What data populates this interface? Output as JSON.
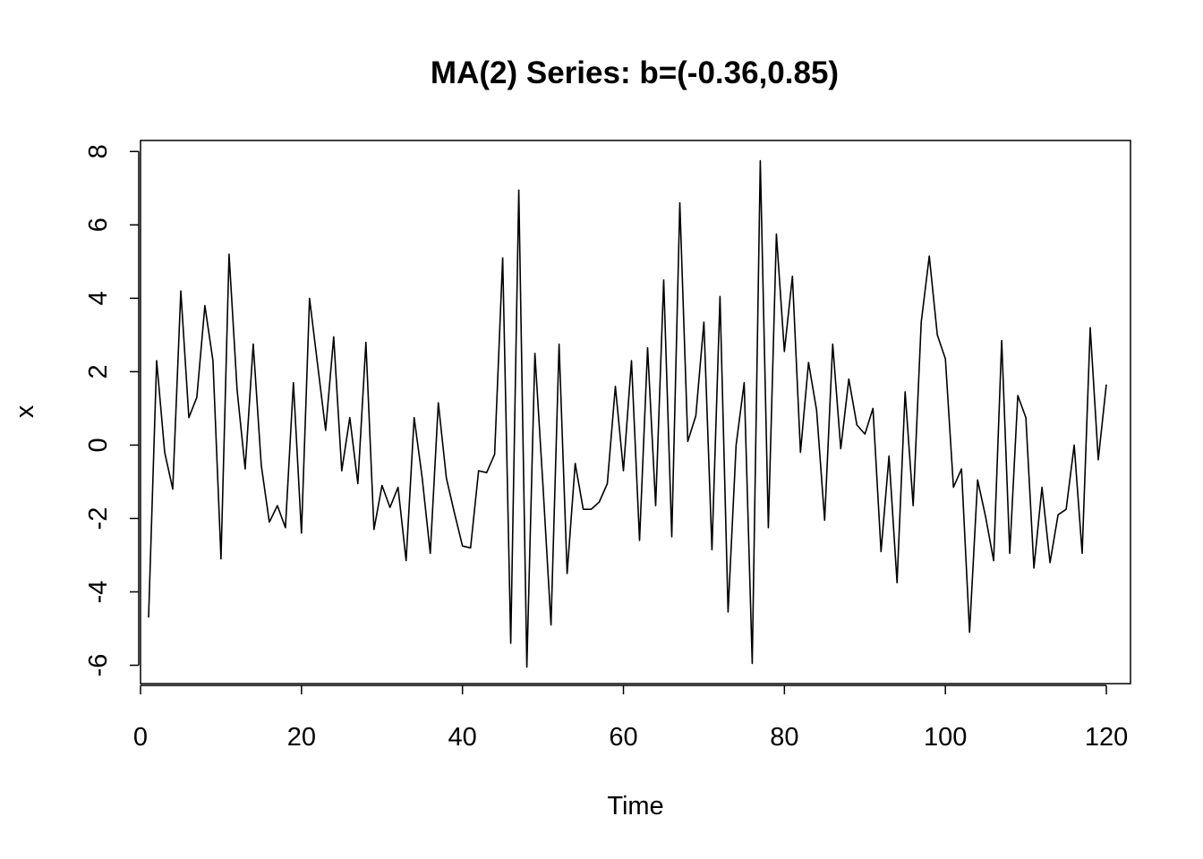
{
  "chart_data": {
    "type": "line",
    "title": "MA(2) Series: b=(-0.36,0.85)",
    "xlabel": "Time",
    "ylabel": "x",
    "xlim": [
      0,
      123
    ],
    "ylim": [
      -6.5,
      8.3
    ],
    "xticks": [
      "0",
      "20",
      "40",
      "60",
      "80",
      "100",
      "120"
    ],
    "yticks": [
      "-6",
      "-4",
      "-2",
      "0",
      "2",
      "4",
      "6",
      "8"
    ],
    "grid": false,
    "legend": "none",
    "color": "#000000",
    "series": [
      {
        "x": [
          1,
          2,
          3,
          4,
          5,
          6,
          7,
          8,
          9,
          10,
          11,
          12,
          13,
          14,
          15,
          16,
          17,
          18,
          19,
          20,
          21,
          22,
          23,
          24,
          25,
          26,
          27,
          28,
          29,
          30,
          31,
          32,
          33,
          34,
          35,
          36,
          37,
          38,
          39,
          40,
          41,
          42,
          43,
          44,
          45,
          46,
          47,
          48,
          49,
          50,
          51,
          52,
          53,
          54,
          55,
          56,
          57,
          58,
          59,
          60,
          61,
          62,
          63,
          64,
          65,
          66,
          67,
          68,
          69,
          70,
          71,
          72,
          73,
          74,
          75,
          76,
          77,
          78,
          79,
          80,
          81,
          82,
          83,
          84,
          85,
          86,
          87,
          88,
          89,
          90,
          91,
          92,
          93,
          94,
          95,
          96,
          97,
          98,
          99,
          100,
          101,
          102,
          103,
          104,
          105,
          106,
          107,
          108,
          109,
          110,
          111,
          112,
          113,
          114,
          115,
          116,
          117,
          118,
          119,
          120
        ],
        "values": [
          -4.7,
          2.3,
          -0.2,
          -1.2,
          4.2,
          0.75,
          1.3,
          3.8,
          2.3,
          -3.1,
          5.2,
          1.5,
          -0.65,
          2.75,
          -0.55,
          -2.1,
          -1.65,
          -2.25,
          1.7,
          -2.4,
          4.0,
          2.2,
          0.4,
          2.95,
          -0.7,
          0.75,
          -1.05,
          2.8,
          -2.3,
          -1.1,
          -1.7,
          -1.15,
          -3.15,
          0.75,
          -0.9,
          -2.95,
          1.15,
          -0.9,
          -1.85,
          -2.75,
          -2.8,
          -0.7,
          -0.75,
          -0.25,
          5.1,
          -5.4,
          6.95,
          -6.05,
          2.5,
          -1.1,
          -4.9,
          2.75,
          -3.5,
          -0.5,
          -1.75,
          -1.75,
          -1.55,
          -1.05,
          1.6,
          -0.7,
          2.3,
          -2.6,
          2.65,
          -1.65,
          4.5,
          -2.5,
          6.6,
          0.1,
          0.8,
          3.35,
          -2.85,
          4.05,
          -4.55,
          0.0,
          1.7,
          -5.95,
          7.75,
          -2.25,
          5.75,
          2.55,
          4.6,
          -0.2,
          2.25,
          0.95,
          -2.05,
          2.75,
          -0.1,
          1.8,
          0.55,
          0.3,
          1.0,
          -2.9,
          -0.3,
          -3.75,
          1.45,
          -1.65,
          3.35,
          5.15,
          3.0,
          2.35,
          -1.15,
          -0.65,
          -5.1,
          -0.95,
          -1.95,
          -3.15,
          2.85,
          -2.95,
          1.35,
          0.75,
          -3.35,
          -1.15,
          -3.2,
          -1.9,
          -1.75,
          0.0,
          -2.95,
          3.2,
          -0.4,
          1.65
        ]
      }
    ]
  }
}
